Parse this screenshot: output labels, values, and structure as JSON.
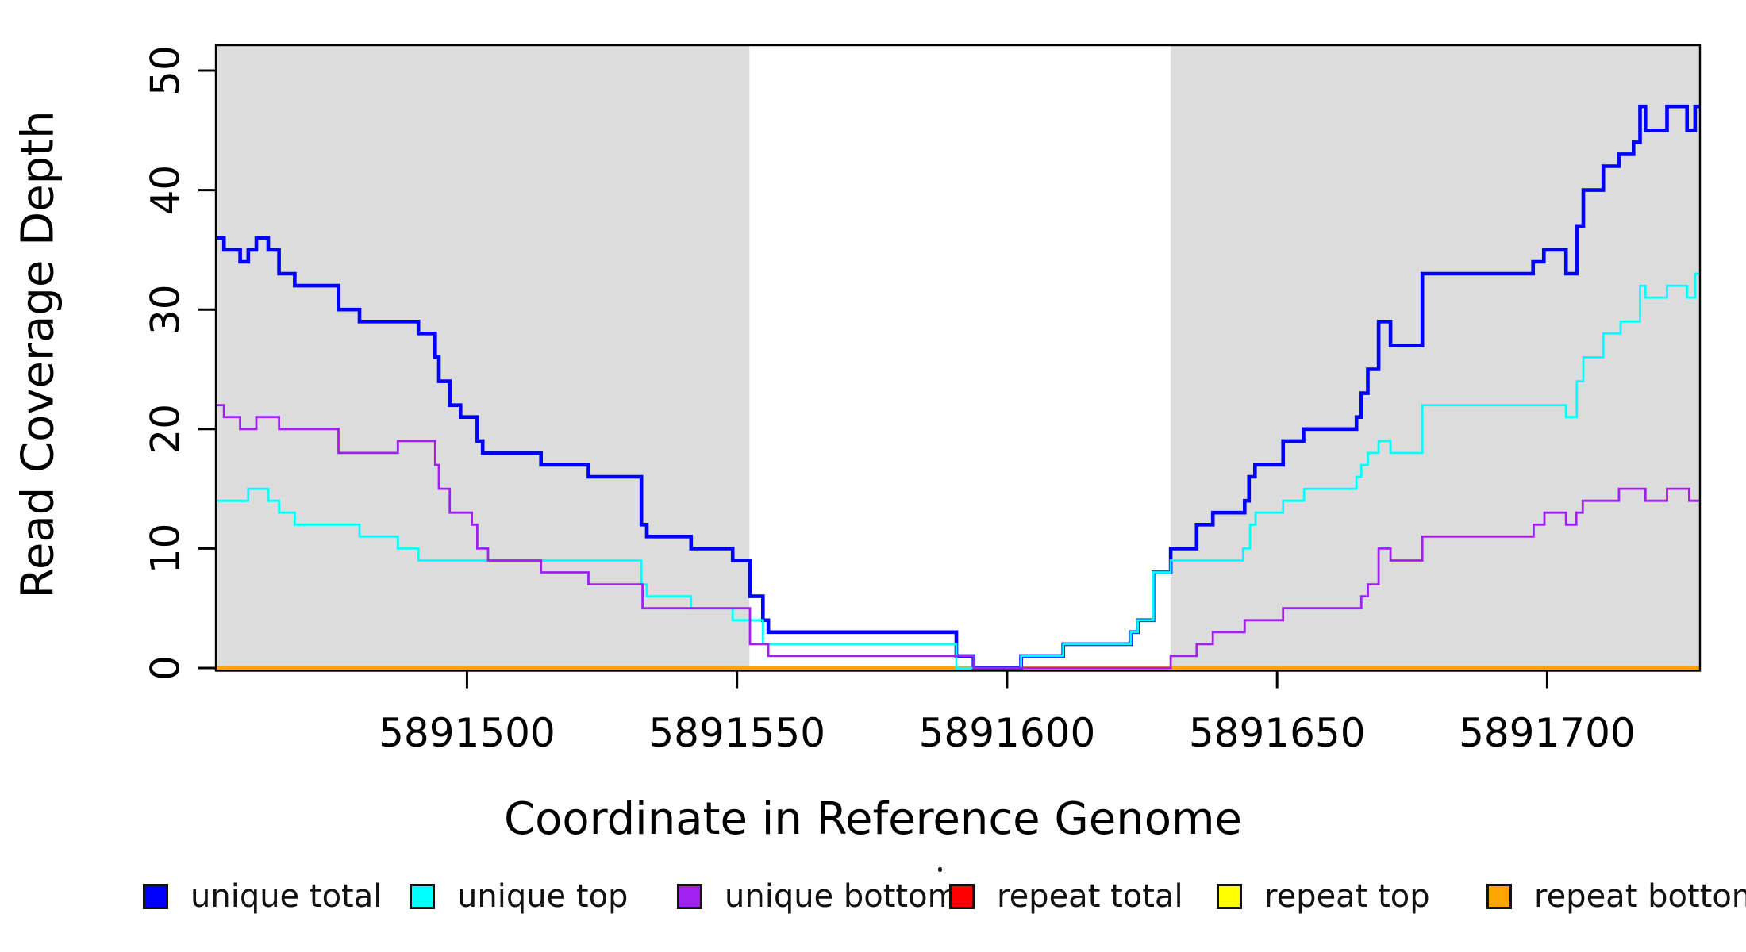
{
  "figure": {
    "x_axis_title": "Coordinate in Reference Genome",
    "y_axis_title": "Read Coverage Depth"
  },
  "axes": {
    "x": {
      "label": "Coordinate in Reference Genome",
      "ticks": [
        {
          "coord": 5891500,
          "label": "5891500"
        },
        {
          "coord": 5891550,
          "label": "5891550"
        },
        {
          "coord": 5891600,
          "label": "5891600"
        },
        {
          "coord": 5891650,
          "label": "5891650"
        },
        {
          "coord": 5891700,
          "label": "5891700"
        }
      ]
    },
    "y": {
      "label": "Read Coverage Depth",
      "ticks": [
        {
          "value": 0,
          "label": "0"
        },
        {
          "value": 10,
          "label": "10"
        },
        {
          "value": 20,
          "label": "20"
        },
        {
          "value": 30,
          "label": "30"
        },
        {
          "value": 40,
          "label": "40"
        },
        {
          "value": 50,
          "label": "50"
        }
      ]
    }
  },
  "legend": {
    "position": "bottom",
    "items": [
      {
        "label": "unique total",
        "color": "#0000FF"
      },
      {
        "label": "unique top",
        "color": "#00FFFF"
      },
      {
        "label": "unique bottom",
        "color": "#A020F0"
      },
      {
        "label": "repeat total",
        "color": "#FF0000"
      },
      {
        "label": "repeat top",
        "color": "#FFFF00"
      },
      {
        "label": "repeat bottom",
        "color": "#FFA500"
      }
    ]
  },
  "chart_data": {
    "type": "line",
    "subtype": "step",
    "title": "",
    "xlabel": "Coordinate in Reference Genome",
    "ylabel": "Read Coverage Depth",
    "x_range": [
      5891453.5,
      5891728.3
    ],
    "y_range": [
      0,
      51.5
    ],
    "grid": false,
    "plot_background": "#ffffff",
    "shaded_region_color": "#DCDCDC",
    "shaded_regions": [
      [
        5891453.5,
        5891552.3
      ],
      [
        5891630.3,
        5891728.3
      ]
    ],
    "series": [
      {
        "name": "repeat total",
        "color": "#FF0000",
        "width": 3,
        "points": [
          [
            5891453.5,
            0
          ]
        ]
      },
      {
        "name": "repeat top",
        "color": "#FFFF00",
        "width": 3,
        "points": [
          [
            5891453.5,
            0
          ]
        ]
      },
      {
        "name": "repeat bottom",
        "color": "#FFA500",
        "width": 4.2,
        "points": [
          [
            5891453.5,
            0
          ]
        ]
      },
      {
        "name": "unique total",
        "color": "#0000FF",
        "width": 4.6,
        "points": [
          [
            5891453.5,
            36
          ],
          [
            5891455,
            35
          ],
          [
            5891458,
            34
          ],
          [
            5891459.5,
            35
          ],
          [
            5891461,
            36
          ],
          [
            5891463.2,
            35
          ],
          [
            5891465.2,
            33
          ],
          [
            5891468.1,
            32
          ],
          [
            5891476.2,
            30
          ],
          [
            5891480.1,
            29
          ],
          [
            5891491,
            28
          ],
          [
            5891494.1,
            26
          ],
          [
            5891494.8,
            24
          ],
          [
            5891496.8,
            22
          ],
          [
            5891498.8,
            21
          ],
          [
            5891501.9,
            19
          ],
          [
            5891502.9,
            18
          ],
          [
            5891513.7,
            17
          ],
          [
            5891522.5,
            16
          ],
          [
            5891532.3,
            12
          ],
          [
            5891533.3,
            11
          ],
          [
            5891541.5,
            10
          ],
          [
            5891549.2,
            9
          ],
          [
            5891552.4,
            6
          ],
          [
            5891554.8,
            4
          ],
          [
            5891555.8,
            3
          ],
          [
            5891590.6,
            1
          ],
          [
            5891593.8,
            0
          ],
          [
            5891602.6,
            1
          ],
          [
            5891610.4,
            2
          ],
          [
            5891622.9,
            3
          ],
          [
            5891624.2,
            4
          ],
          [
            5891627.1,
            8
          ],
          [
            5891630.3,
            10
          ],
          [
            5891635.1,
            12
          ],
          [
            5891638.1,
            13
          ],
          [
            5891644,
            14
          ],
          [
            5891644.8,
            16
          ],
          [
            5891645.9,
            17
          ],
          [
            5891651.1,
            19
          ],
          [
            5891654.9,
            20
          ],
          [
            5891664.7,
            21
          ],
          [
            5891665.6,
            23
          ],
          [
            5891666.8,
            25
          ],
          [
            5891668.8,
            29
          ],
          [
            5891671,
            27
          ],
          [
            5891676.9,
            33
          ],
          [
            5891697.4,
            34
          ],
          [
            5891699.4,
            35
          ],
          [
            5891703.5,
            33
          ],
          [
            5891705.5,
            37
          ],
          [
            5891706.7,
            40
          ],
          [
            5891710.4,
            42
          ],
          [
            5891713.3,
            43
          ],
          [
            5891716,
            44
          ],
          [
            5891717.2,
            47
          ],
          [
            5891718.2,
            45
          ],
          [
            5891722.2,
            47
          ],
          [
            5891725.9,
            45
          ],
          [
            5891727.4,
            47
          ]
        ]
      },
      {
        "name": "unique top",
        "color": "#00FFFF",
        "width": 2.8,
        "points": [
          [
            5891453.5,
            14
          ],
          [
            5891459.5,
            15
          ],
          [
            5891463.2,
            14
          ],
          [
            5891465.2,
            13
          ],
          [
            5891468.1,
            12
          ],
          [
            5891480.1,
            11
          ],
          [
            5891487.2,
            10
          ],
          [
            5891491,
            9
          ],
          [
            5891532.3,
            7
          ],
          [
            5891533.3,
            6
          ],
          [
            5891541.5,
            5
          ],
          [
            5891549.2,
            4
          ],
          [
            5891554.8,
            2
          ],
          [
            5891590.6,
            0
          ],
          [
            5891602.6,
            1
          ],
          [
            5891610.4,
            2
          ],
          [
            5891622.9,
            3
          ],
          [
            5891624.2,
            4
          ],
          [
            5891627.1,
            8
          ],
          [
            5891630.3,
            9
          ],
          [
            5891643.7,
            10
          ],
          [
            5891645,
            12
          ],
          [
            5891646,
            13
          ],
          [
            5891651.1,
            14
          ],
          [
            5891655,
            15
          ],
          [
            5891664.7,
            16
          ],
          [
            5891665.6,
            17
          ],
          [
            5891666.8,
            18
          ],
          [
            5891668.8,
            19
          ],
          [
            5891671,
            18
          ],
          [
            5891676.9,
            22
          ],
          [
            5891703.5,
            21
          ],
          [
            5891705.5,
            24
          ],
          [
            5891706.7,
            26
          ],
          [
            5891710.4,
            28
          ],
          [
            5891713.6,
            29
          ],
          [
            5891717.2,
            32
          ],
          [
            5891718.2,
            31
          ],
          [
            5891722.2,
            32
          ],
          [
            5891725.9,
            31
          ],
          [
            5891727.4,
            33
          ]
        ]
      },
      {
        "name": "unique bottom",
        "color": "#A020F0",
        "width": 2.8,
        "points": [
          [
            5891453.5,
            22
          ],
          [
            5891455,
            21
          ],
          [
            5891458,
            20
          ],
          [
            5891461,
            21
          ],
          [
            5891465.2,
            20
          ],
          [
            5891476.2,
            18
          ],
          [
            5891487.2,
            19
          ],
          [
            5891494.1,
            17
          ],
          [
            5891494.8,
            15
          ],
          [
            5891496.8,
            13
          ],
          [
            5891500.9,
            12
          ],
          [
            5891501.9,
            10
          ],
          [
            5891503.9,
            9
          ],
          [
            5891513.7,
            8
          ],
          [
            5891522.5,
            7
          ],
          [
            5891532.5,
            5
          ],
          [
            5891552.4,
            2
          ],
          [
            5891555.8,
            1
          ],
          [
            5891593.8,
            0
          ],
          [
            5891630.3,
            1
          ],
          [
            5891635.1,
            2
          ],
          [
            5891638.1,
            3
          ],
          [
            5891644,
            4
          ],
          [
            5891651.1,
            5
          ],
          [
            5891665.6,
            6
          ],
          [
            5891666.8,
            7
          ],
          [
            5891668.8,
            10
          ],
          [
            5891671,
            9
          ],
          [
            5891676.9,
            11
          ],
          [
            5891697.5,
            12
          ],
          [
            5891699.5,
            13
          ],
          [
            5891703.5,
            12
          ],
          [
            5891705.4,
            13
          ],
          [
            5891706.6,
            14
          ],
          [
            5891713.3,
            15
          ],
          [
            5891718.2,
            14
          ],
          [
            5891722.2,
            15
          ],
          [
            5891726.3,
            14
          ]
        ]
      }
    ]
  }
}
